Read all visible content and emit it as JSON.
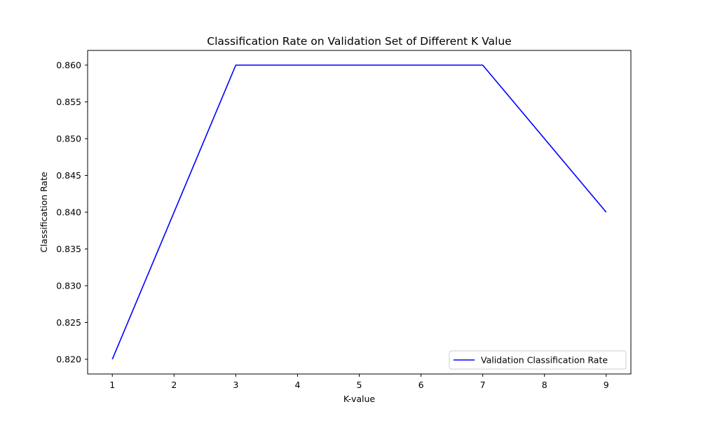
{
  "chart_data": {
    "type": "line",
    "title": "Classification Rate on Validation Set of Different K Value",
    "xlabel": "K-value",
    "ylabel": "Classification Rate",
    "x": [
      1,
      3,
      5,
      7,
      9
    ],
    "series": [
      {
        "name": "Validation Classification Rate",
        "values": [
          0.82,
          0.86,
          0.86,
          0.86,
          0.84
        ],
        "color": "#0000ff"
      }
    ],
    "xticks": [
      1,
      2,
      3,
      4,
      5,
      6,
      7,
      8,
      9
    ],
    "xtick_labels": [
      "1",
      "2",
      "3",
      "4",
      "5",
      "6",
      "7",
      "8",
      "9"
    ],
    "yticks": [
      0.82,
      0.825,
      0.83,
      0.835,
      0.84,
      0.845,
      0.85,
      0.855,
      0.86
    ],
    "ytick_labels": [
      "0.820",
      "0.825",
      "0.830",
      "0.835",
      "0.840",
      "0.845",
      "0.850",
      "0.855",
      "0.860"
    ],
    "xlim": [
      0.6,
      9.4
    ],
    "ylim": [
      0.818,
      0.862
    ],
    "grid": false,
    "legend_position": "lower right"
  }
}
